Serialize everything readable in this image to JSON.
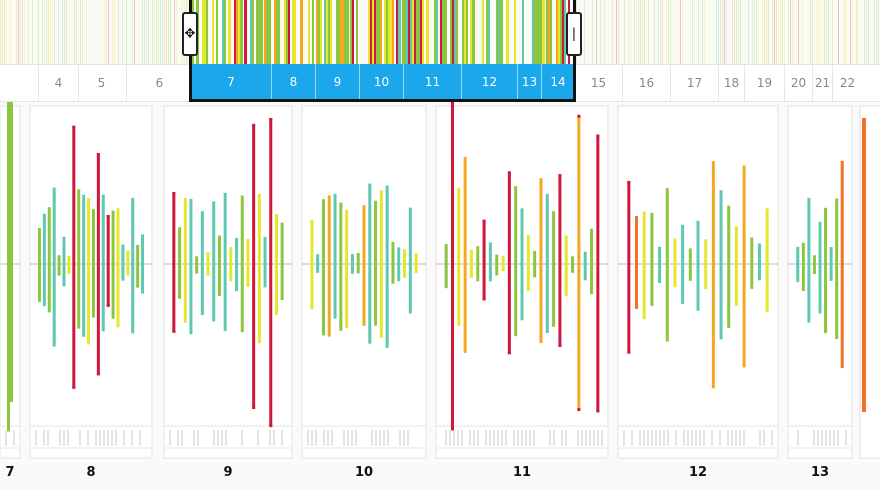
{
  "colors": {
    "green": "#8cc63f",
    "yellow": "#e6e62e",
    "orange": "#f5a623",
    "red": "#d0183c",
    "teal": "#5ec8b3",
    "dark_orange": "#f27127",
    "selection": "#1aa7ec",
    "axis": "#bbbbbb"
  },
  "overview": {
    "selected_days": [
      "7",
      "8",
      "9",
      "10",
      "11",
      "12",
      "13",
      "14"
    ]
  },
  "timeline": {
    "days": [
      "4",
      "5",
      "6",
      "7",
      "8",
      "9",
      "10",
      "11",
      "12",
      "13",
      "14",
      "15",
      "16",
      "17",
      "18",
      "19",
      "20",
      "21",
      "22"
    ]
  },
  "detail": {
    "days": [
      "7",
      "8",
      "9",
      "10",
      "11",
      "12",
      "13"
    ],
    "bars": {
      "7": [
        "g",
        "g"
      ],
      "8": [
        "g",
        "t",
        "g",
        "t",
        "g",
        "t",
        "y",
        "r",
        "g",
        "t",
        "y",
        "g",
        "r",
        "t",
        "r",
        "g",
        "y",
        "t",
        "y",
        "t",
        "g",
        "t"
      ],
      "9": [
        "r",
        "g",
        "y",
        "t",
        "g",
        "t",
        "y",
        "t",
        "g",
        "t",
        "y",
        "t",
        "g",
        "y",
        "r",
        "y",
        "t",
        "r",
        "y",
        "g"
      ],
      "10": [
        "y",
        "t",
        "g",
        "o",
        "t",
        "g",
        "y",
        "t",
        "g",
        "o",
        "t",
        "g",
        "y",
        "t",
        "g",
        "t",
        "y",
        "t",
        "y"
      ],
      "11": [
        "g",
        "r",
        "y",
        "o",
        "y",
        "g",
        "r",
        "t",
        "g",
        "y",
        "r",
        "g",
        "t",
        "y",
        "g",
        "o",
        "t",
        "g",
        "r",
        "y",
        "g",
        "o",
        "t",
        "g",
        "r"
      ],
      "12": [
        "r",
        "do",
        "y",
        "g",
        "t",
        "g",
        "y",
        "t",
        "g",
        "t",
        "y",
        "o",
        "t",
        "g",
        "y",
        "o",
        "g",
        "t",
        "y"
      ],
      "13": [
        "t",
        "g",
        "t",
        "g",
        "t",
        "g",
        "t",
        "g",
        "do"
      ]
    }
  }
}
